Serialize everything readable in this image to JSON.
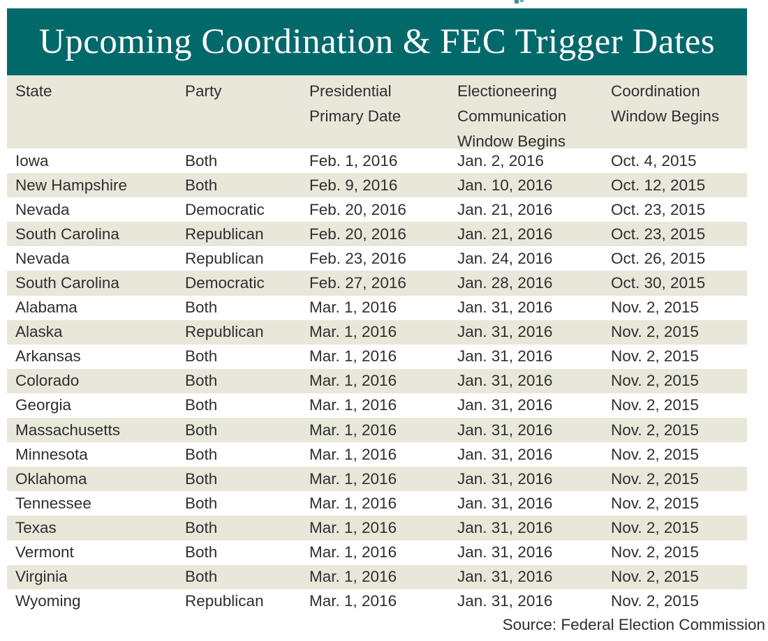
{
  "page": {
    "title": "Upcoming Coordination & FEC Trigger Dates",
    "source_note": "Source: Federal Election Commission"
  },
  "colors": {
    "banner_teal": "#02696b",
    "stripe_beige": "#e9e7da",
    "title_text": "#ffffff",
    "body_text": "#2e2e2e"
  },
  "header_lines": [
    [
      "State"
    ],
    [
      "Party"
    ],
    [
      "Presidential",
      "Primary Date"
    ],
    [
      "Electioneering",
      "Communication",
      "Window Begins"
    ],
    [
      "Coordination",
      "Window Begins"
    ]
  ],
  "chart_data": {
    "type": "table",
    "title": "Upcoming Coordination & FEC Trigger Dates",
    "columns": [
      "State",
      "Party",
      "Presidential Primary Date",
      "Electioneering Communication Window Begins",
      "Coordination Window Begins"
    ],
    "rows": [
      [
        "Iowa",
        "Both",
        "Feb. 1, 2016",
        "Jan. 2, 2016",
        "Oct. 4, 2015"
      ],
      [
        "New Hampshire",
        "Both",
        "Feb. 9, 2016",
        "Jan. 10, 2016",
        "Oct. 12, 2015"
      ],
      [
        "Nevada",
        "Democratic",
        "Feb. 20, 2016",
        "Jan. 21, 2016",
        "Oct. 23, 2015"
      ],
      [
        "South Carolina",
        "Republican",
        "Feb. 20, 2016",
        "Jan. 21, 2016",
        "Oct. 23, 2015"
      ],
      [
        "Nevada",
        "Republican",
        "Feb. 23, 2016",
        "Jan. 24, 2016",
        "Oct. 26, 2015"
      ],
      [
        "South Carolina",
        "Democratic",
        "Feb. 27, 2016",
        "Jan. 28, 2016",
        "Oct. 30, 2015"
      ],
      [
        "Alabama",
        "Both",
        "Mar. 1, 2016",
        "Jan. 31, 2016",
        "Nov. 2, 2015"
      ],
      [
        "Alaska",
        "Republican",
        "Mar. 1, 2016",
        "Jan. 31, 2016",
        "Nov. 2, 2015"
      ],
      [
        "Arkansas",
        "Both",
        "Mar. 1, 2016",
        "Jan. 31, 2016",
        "Nov. 2, 2015"
      ],
      [
        "Colorado",
        "Both",
        "Mar. 1, 2016",
        "Jan. 31, 2016",
        "Nov. 2, 2015"
      ],
      [
        "Georgia",
        "Both",
        "Mar. 1, 2016",
        "Jan. 31, 2016",
        "Nov. 2, 2015"
      ],
      [
        "Massachusetts",
        "Both",
        "Mar. 1, 2016",
        "Jan. 31, 2016",
        "Nov. 2, 2015"
      ],
      [
        "Minnesota",
        "Both",
        "Mar. 1, 2016",
        "Jan. 31, 2016",
        "Nov. 2, 2015"
      ],
      [
        "Oklahoma",
        "Both",
        "Mar. 1, 2016",
        "Jan. 31, 2016",
        "Nov. 2, 2015"
      ],
      [
        "Tennessee",
        "Both",
        "Mar. 1, 2016",
        "Jan. 31, 2016",
        "Nov. 2, 2015"
      ],
      [
        "Texas",
        "Both",
        "Mar. 1, 2016",
        "Jan. 31, 2016",
        "Nov. 2, 2015"
      ],
      [
        "Vermont",
        "Both",
        "Mar. 1, 2016",
        "Jan. 31, 2016",
        "Nov. 2, 2015"
      ],
      [
        "Virginia",
        "Both",
        "Mar. 1, 2016",
        "Jan. 31, 2016",
        "Nov. 2, 2015"
      ],
      [
        "Wyoming",
        "Republican",
        "Mar. 1, 2016",
        "Jan. 31, 2016",
        "Nov. 2, 2015"
      ]
    ],
    "source": "Source: Federal Election Commission",
    "layout": {
      "stripe_pattern": "even data rows beige, odd white",
      "column_alignment": "left"
    }
  }
}
